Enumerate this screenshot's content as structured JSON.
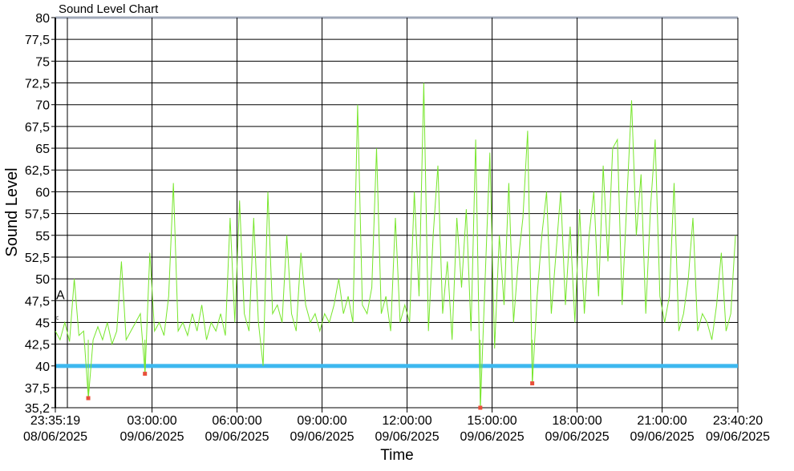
{
  "chart_data": {
    "type": "line",
    "title": "Sound Level Chart",
    "xlabel": "Time",
    "ylabel": "Sound Level",
    "ylim": [
      35.2,
      80
    ],
    "y_ticks": [
      "35,2",
      "37,5",
      "40",
      "42,5",
      "45",
      "47,5",
      "50",
      "52,5",
      "55",
      "57,5",
      "60",
      "62,5",
      "65",
      "67,5",
      "70",
      "72,5",
      "75",
      "77,5",
      "80"
    ],
    "x_ticks": [
      {
        "time": "23:35:19",
        "date": "08/06/2025"
      },
      {
        "time": "03:00:00",
        "date": "09/06/2025"
      },
      {
        "time": "06:00:00",
        "date": "09/06/2025"
      },
      {
        "time": "09:00:00",
        "date": "09/06/2025"
      },
      {
        "time": "12:00:00",
        "date": "09/06/2025"
      },
      {
        "time": "15:00:00",
        "date": "09/06/2025"
      },
      {
        "time": "18:00:00",
        "date": "09/06/2025"
      },
      {
        "time": "21:00:00",
        "date": "09/06/2025"
      },
      {
        "time": "23:40:20",
        "date": "09/06/2025"
      }
    ],
    "x_start": "08/06/2025 23:35:19",
    "x_end": "09/06/2025 23:40:20",
    "sample_interval_minutes": 10,
    "grid": true,
    "series": [
      {
        "color": "#77e62c",
        "values": [
          44,
          43,
          45,
          42.8,
          50,
          43.5,
          44,
          36.3,
          43,
          44.5,
          43,
          45,
          42.5,
          44,
          52,
          43,
          44,
          45,
          46,
          39.1,
          53,
          44,
          45,
          43.5,
          48,
          61,
          44,
          45,
          43.5,
          46,
          44,
          47,
          43,
          45,
          44,
          46,
          43.5,
          57,
          45,
          59,
          46,
          44,
          57,
          45,
          40,
          60,
          46,
          47,
          45,
          55,
          46,
          44,
          53,
          47,
          45,
          46,
          44,
          46,
          45,
          47,
          50,
          46,
          48,
          45,
          70,
          47,
          46,
          49,
          65,
          46,
          48,
          44,
          57,
          45,
          47,
          45,
          60,
          48,
          72.5,
          44,
          55,
          63,
          46,
          52,
          43,
          57,
          49,
          58,
          44,
          66,
          35.2,
          50,
          64.5,
          42,
          55,
          47,
          61,
          45,
          52,
          57,
          67,
          38,
          48,
          55,
          60,
          46,
          53,
          60,
          47,
          56,
          45,
          58,
          46,
          55,
          60,
          48,
          63,
          52,
          65,
          66,
          47,
          59,
          70.5,
          55,
          62,
          46,
          58,
          66,
          48,
          45,
          48,
          61,
          44,
          46,
          50,
          57,
          44,
          46,
          45,
          43,
          47,
          53,
          44,
          46,
          55
        ]
      }
    ],
    "markers": [
      {
        "time": "09/06/2025 00:45",
        "value": 36.3
      },
      {
        "time": "09/06/2025 02:45",
        "value": 39.1
      },
      {
        "time": "09/06/2025 14:35",
        "value": 35.2
      },
      {
        "time": "09/06/2025 16:25",
        "value": 38.0
      }
    ],
    "marker_color": "#e8503a",
    "threshold": {
      "value": 40,
      "color": "#3db8ef"
    },
    "annotation": {
      "label": "A",
      "value": 47.5
    },
    "pointer": {
      "glyph": "<",
      "value": 45.5
    }
  }
}
